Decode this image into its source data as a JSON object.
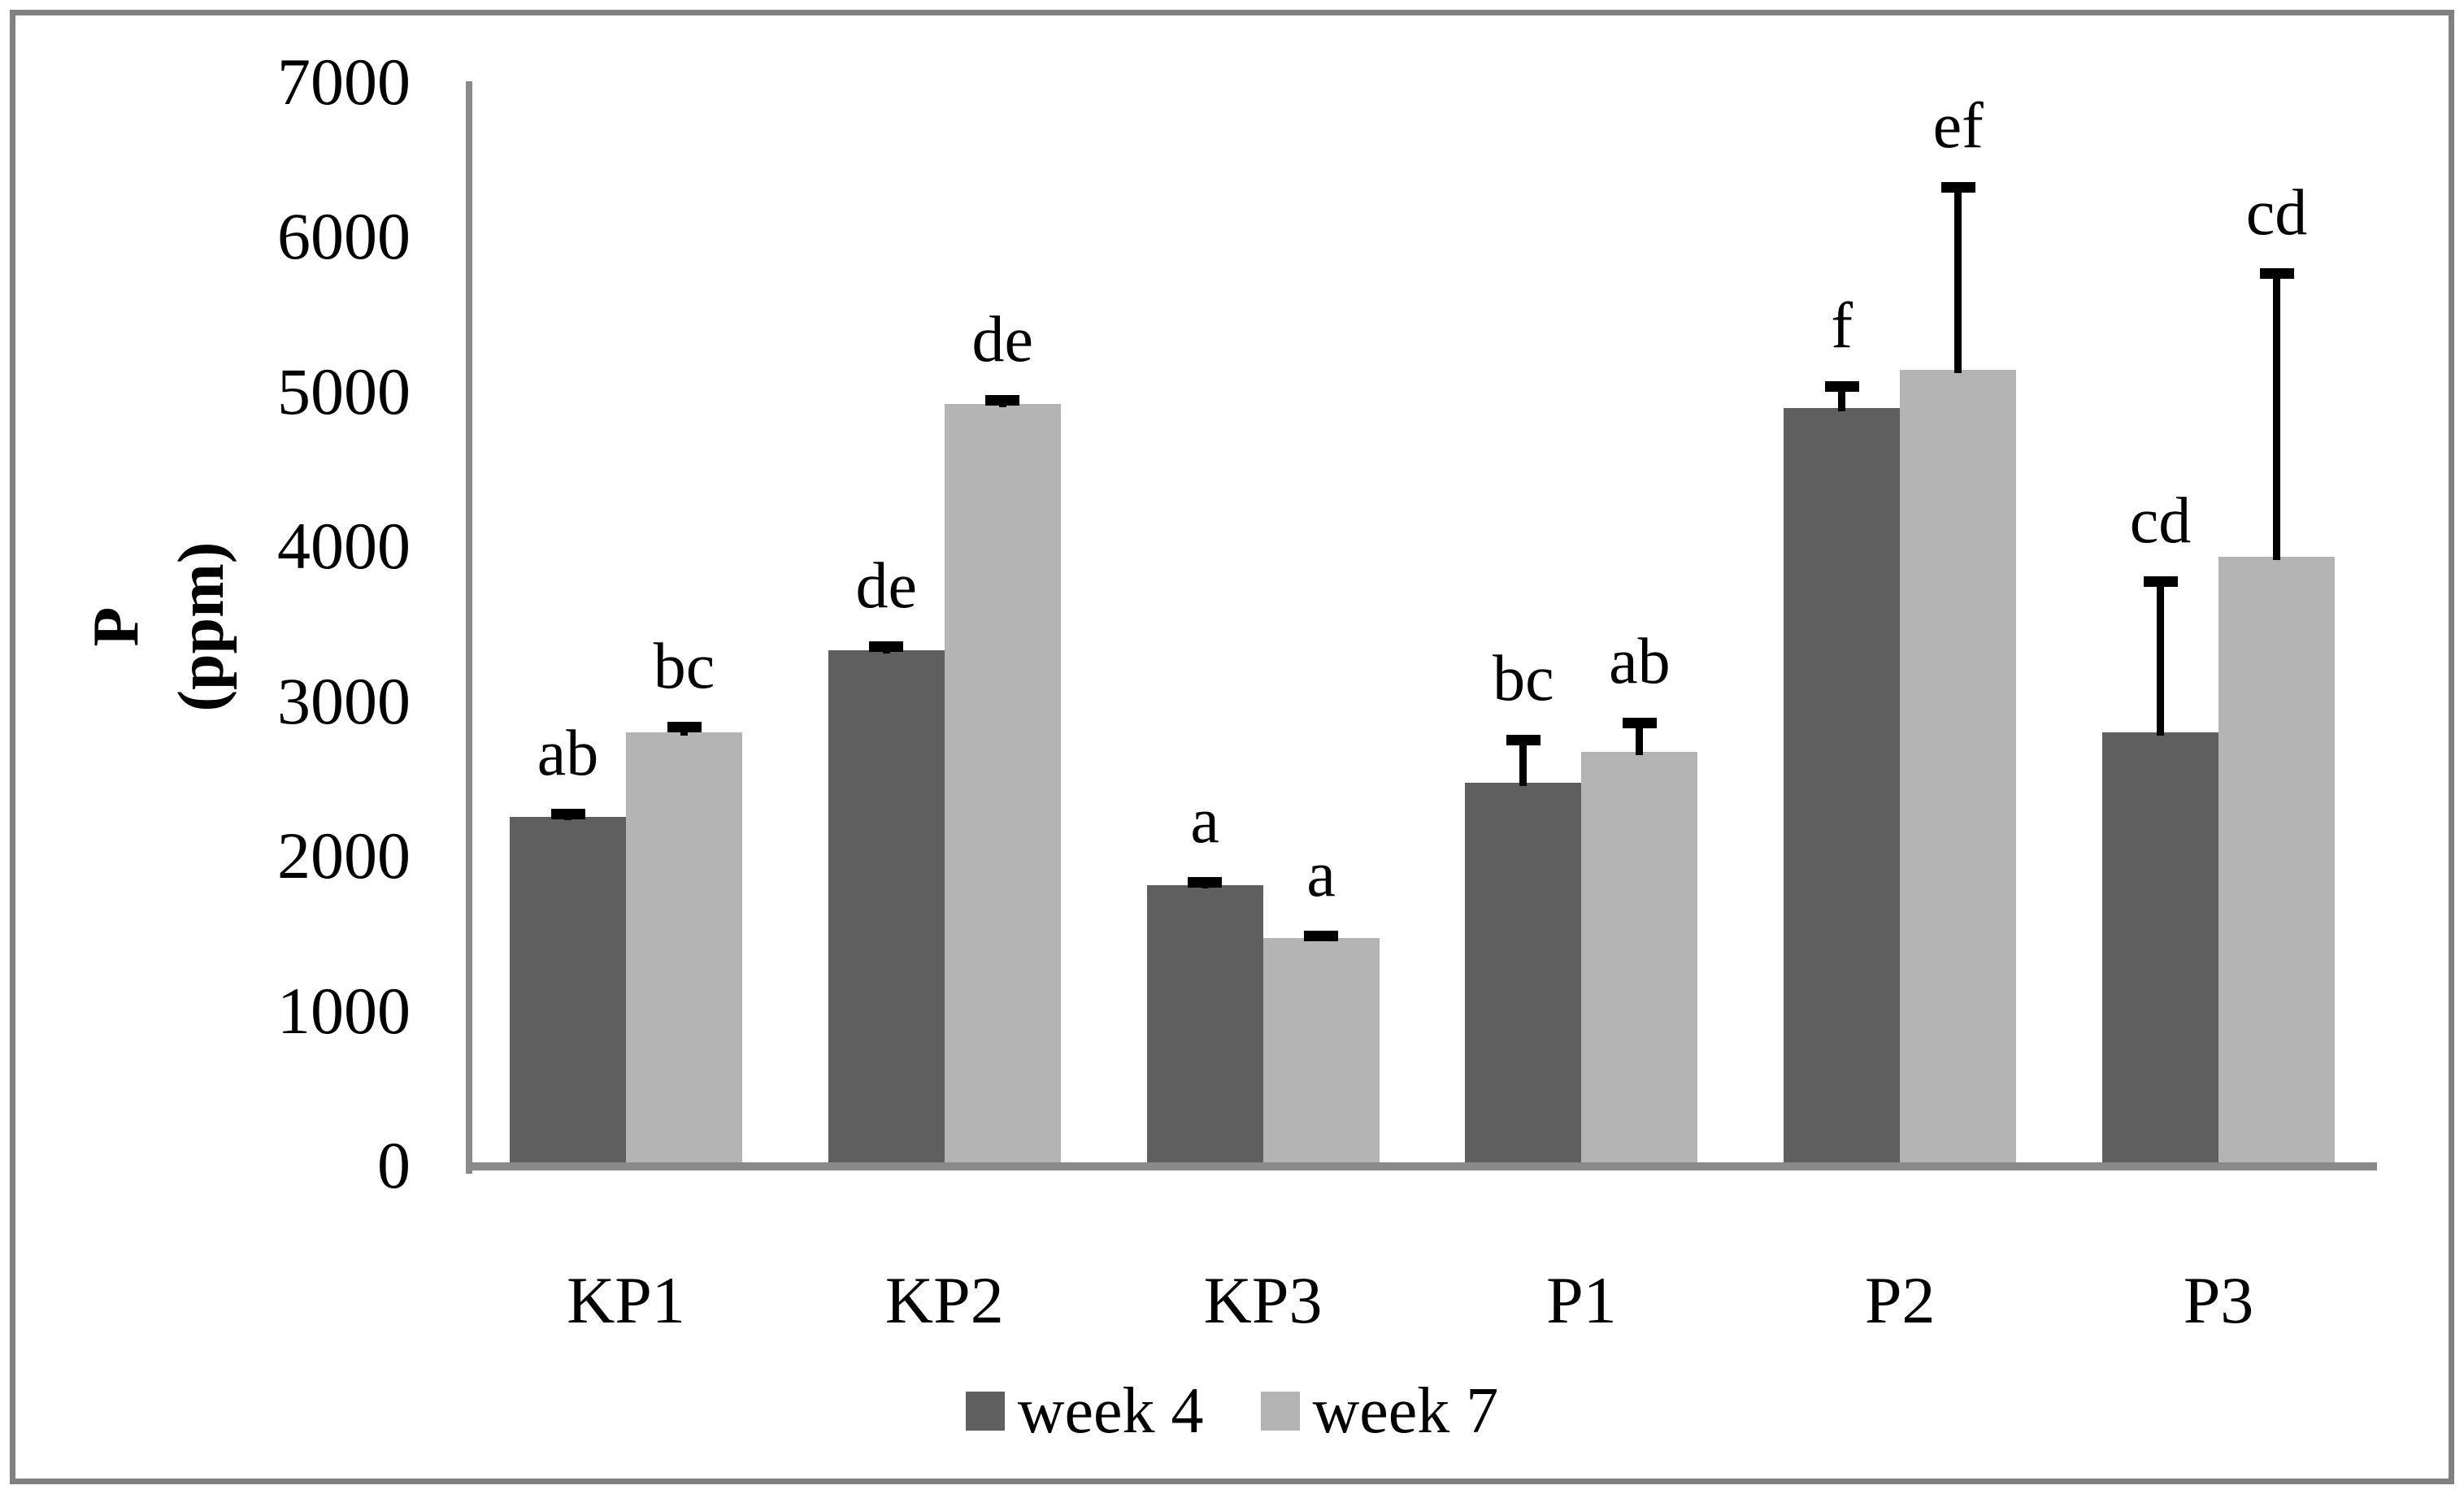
{
  "figure": {
    "background": "#ffffff",
    "border_color": "#808080",
    "axis_color": "#8a8a8a",
    "error_bar_color": "#000000"
  },
  "chart_data": {
    "type": "bar",
    "title": "",
    "ylabel_lines": [
      "P",
      "(ppm)"
    ],
    "xlabel": "",
    "categories": [
      "KP1",
      "KP2",
      "KP3",
      "P1",
      "P2",
      "P3"
    ],
    "series": [
      {
        "name": "week 4",
        "color": "#5f5f5f",
        "values": [
          2250,
          3330,
          1810,
          2470,
          4890,
          2800
        ],
        "error_plus": [
          20,
          20,
          20,
          280,
          140,
          970
        ],
        "letters": [
          "ab",
          "de",
          "a",
          "bc",
          "f",
          "cd"
        ]
      },
      {
        "name": "week 7",
        "color": "#b4b4b4",
        "values": [
          2800,
          4920,
          1470,
          2670,
          5140,
          3930
        ],
        "error_plus": [
          30,
          20,
          15,
          190,
          1180,
          1830
        ],
        "letters": [
          "bc",
          "de",
          "a",
          "ab",
          "ef",
          "cd"
        ]
      }
    ],
    "ylim": [
      0,
      7000
    ],
    "yticks": [
      0,
      1000,
      2000,
      3000,
      4000,
      5000,
      6000,
      7000
    ],
    "grid": false,
    "legend_position": "bottom",
    "error_bars": "upper only, with caps",
    "annotation_style": "significance letters above bars"
  }
}
